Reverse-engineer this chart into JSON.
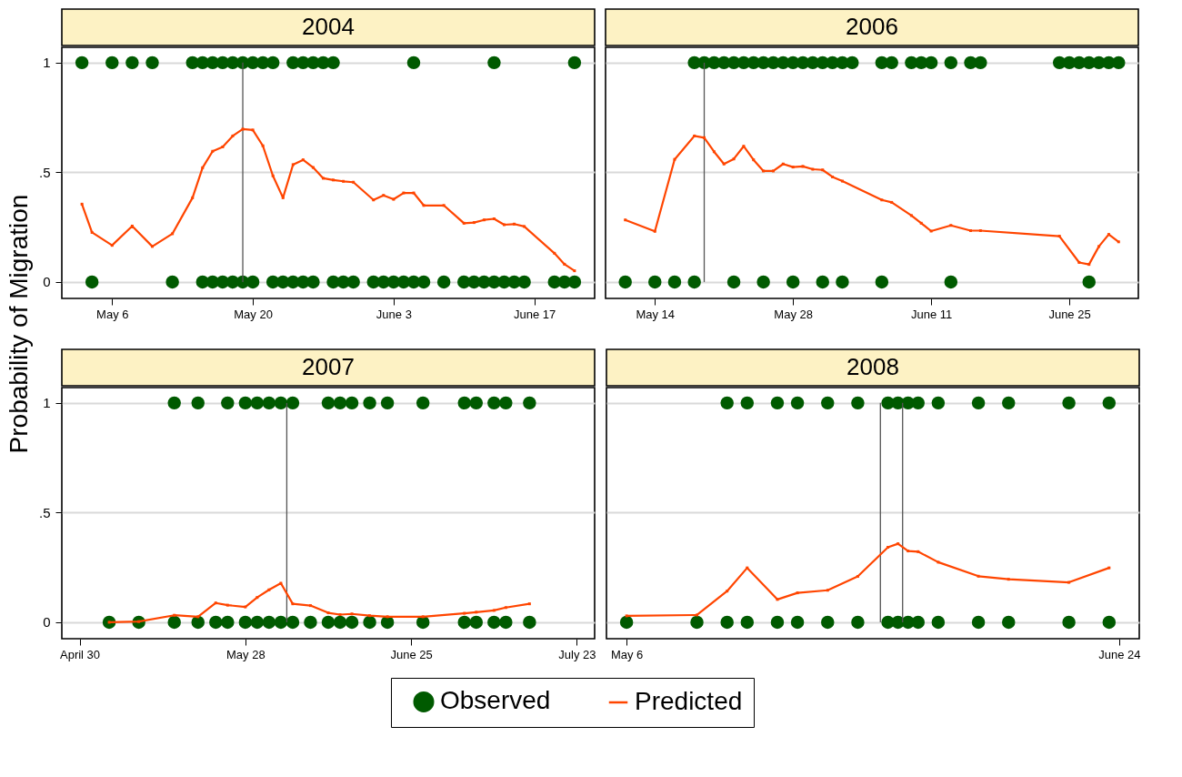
{
  "chart_data": [
    {
      "type": "line",
      "title": "2004",
      "ylabel": "Probability of Migration",
      "xlim": [
        "2004-05-01",
        "2004-06-23"
      ],
      "ylim": [
        -0.075,
        1.07
      ],
      "xticks": [
        {
          "value": "2004-05-06",
          "label": "May 6"
        },
        {
          "value": "2004-05-20",
          "label": "May 20"
        },
        {
          "value": "2004-06-03",
          "label": "June 3"
        },
        {
          "value": "2004-06-17",
          "label": "June 17"
        }
      ],
      "yticks": [
        0,
        {
          "value": 0.5,
          "label": ".5"
        },
        1
      ],
      "grid": "y",
      "legend": "bottom",
      "ref_lines": [
        {
          "axis": "x",
          "value": "2004-05-19",
          "color": "#555555"
        }
      ],
      "series": [
        {
          "name": "Observed",
          "type": "scatter",
          "marker": "circle",
          "color": "#005a00",
          "x": [
            "2004-05-03",
            "2004-05-06",
            "2004-05-08",
            "2004-05-10",
            "2004-05-14",
            "2004-05-15",
            "2004-05-16",
            "2004-05-17",
            "2004-05-18",
            "2004-05-19",
            "2004-05-20",
            "2004-05-21",
            "2004-05-22",
            "2004-05-24",
            "2004-05-25",
            "2004-05-26",
            "2004-05-27",
            "2004-05-28",
            "2004-06-05",
            "2004-06-13",
            "2004-06-21",
            "2004-05-04",
            "2004-05-12",
            "2004-05-15",
            "2004-05-16",
            "2004-05-17",
            "2004-05-18",
            "2004-05-19",
            "2004-05-20",
            "2004-05-22",
            "2004-05-23",
            "2004-05-24",
            "2004-05-25",
            "2004-05-26",
            "2004-05-28",
            "2004-05-29",
            "2004-05-30",
            "2004-06-01",
            "2004-06-02",
            "2004-06-03",
            "2004-06-04",
            "2004-06-05",
            "2004-06-06",
            "2004-06-08",
            "2004-06-10",
            "2004-06-11",
            "2004-06-12",
            "2004-06-13",
            "2004-06-14",
            "2004-06-15",
            "2004-06-16",
            "2004-06-19",
            "2004-06-20",
            "2004-06-21"
          ],
          "values": [
            1,
            1,
            1,
            1,
            1,
            1,
            1,
            1,
            1,
            1,
            1,
            1,
            1,
            1,
            1,
            1,
            1,
            1,
            1,
            1,
            1,
            0,
            0,
            0,
            0,
            0,
            0,
            0,
            0,
            0,
            0,
            0,
            0,
            0,
            0,
            0,
            0,
            0,
            0,
            0,
            0,
            0,
            0,
            0,
            0,
            0,
            0,
            0,
            0,
            0,
            0,
            0,
            0,
            0
          ]
        },
        {
          "name": "Predicted",
          "type": "line",
          "marker": "square",
          "color": "#ff4500",
          "x": [
            "2004-05-03",
            "2004-05-04",
            "2004-05-06",
            "2004-05-08",
            "2004-05-10",
            "2004-05-12",
            "2004-05-14",
            "2004-05-15",
            "2004-05-16",
            "2004-05-17",
            "2004-05-18",
            "2004-05-19",
            "2004-05-20",
            "2004-05-21",
            "2004-05-22",
            "2004-05-23",
            "2004-05-24",
            "2004-05-25",
            "2004-05-26",
            "2004-05-27",
            "2004-05-28",
            "2004-05-29",
            "2004-05-30",
            "2004-06-01",
            "2004-06-02",
            "2004-06-03",
            "2004-06-04",
            "2004-06-05",
            "2004-06-06",
            "2004-06-08",
            "2004-06-10",
            "2004-06-11",
            "2004-06-12",
            "2004-06-13",
            "2004-06-14",
            "2004-06-15",
            "2004-06-16",
            "2004-06-19",
            "2004-06-20",
            "2004-06-21"
          ],
          "values": [
            0.355,
            0.226,
            0.167,
            0.255,
            0.162,
            0.22,
            0.384,
            0.521,
            0.596,
            0.616,
            0.666,
            0.697,
            0.693,
            0.621,
            0.484,
            0.384,
            0.535,
            0.557,
            0.522,
            0.473,
            0.465,
            0.459,
            0.455,
            0.374,
            0.395,
            0.377,
            0.406,
            0.406,
            0.349,
            0.349,
            0.268,
            0.271,
            0.283,
            0.288,
            0.261,
            0.264,
            0.253,
            0.131,
            0.081,
            0.051
          ]
        }
      ]
    },
    {
      "type": "line",
      "title": "2006",
      "xlim": [
        "2006-05-09",
        "2006-07-02"
      ],
      "ylim": [
        -0.075,
        1.07
      ],
      "xticks": [
        {
          "value": "2006-05-14",
          "label": "May 14"
        },
        {
          "value": "2006-05-28",
          "label": "May 28"
        },
        {
          "value": "2006-06-11",
          "label": "June 11"
        },
        {
          "value": "2006-06-25",
          "label": "June 25"
        }
      ],
      "yticks": [
        0,
        0.5,
        1
      ],
      "grid": "y",
      "tick_labels": "x",
      "ref_lines": [
        {
          "axis": "x",
          "value": "2006-05-19",
          "color": "#555555"
        }
      ],
      "series": [
        {
          "type": "scatter",
          "marker": "circle",
          "color": "#005a00",
          "x": [
            "2006-05-18",
            "2006-05-19",
            "2006-05-20",
            "2006-05-21",
            "2006-05-22",
            "2006-05-23",
            "2006-05-24",
            "2006-05-25",
            "2006-05-26",
            "2006-05-27",
            "2006-05-28",
            "2006-05-29",
            "2006-05-30",
            "2006-05-31",
            "2006-06-01",
            "2006-06-02",
            "2006-06-03",
            "2006-06-06",
            "2006-06-07",
            "2006-06-09",
            "2006-06-10",
            "2006-06-11",
            "2006-06-13",
            "2006-06-15",
            "2006-06-16",
            "2006-06-24",
            "2006-06-25",
            "2006-06-26",
            "2006-06-27",
            "2006-06-28",
            "2006-06-29",
            "2006-06-30",
            "2006-05-11",
            "2006-05-14",
            "2006-05-16",
            "2006-05-18",
            "2006-05-22",
            "2006-05-25",
            "2006-05-28",
            "2006-05-31",
            "2006-06-02",
            "2006-06-06",
            "2006-06-13",
            "2006-06-27"
          ],
          "values": [
            1,
            1,
            1,
            1,
            1,
            1,
            1,
            1,
            1,
            1,
            1,
            1,
            1,
            1,
            1,
            1,
            1,
            1,
            1,
            1,
            1,
            1,
            1,
            1,
            1,
            1,
            1,
            1,
            1,
            1,
            1,
            1,
            0,
            0,
            0,
            0,
            0,
            0,
            0,
            0,
            0,
            0,
            0,
            0
          ]
        },
        {
          "type": "line",
          "marker": "square",
          "color": "#ff4500",
          "x": [
            "2006-05-11",
            "2006-05-14",
            "2006-05-16",
            "2006-05-18",
            "2006-05-19",
            "2006-05-20",
            "2006-05-21",
            "2006-05-22",
            "2006-05-23",
            "2006-05-24",
            "2006-05-25",
            "2006-05-26",
            "2006-05-27",
            "2006-05-28",
            "2006-05-29",
            "2006-05-30",
            "2006-05-31",
            "2006-06-01",
            "2006-06-02",
            "2006-06-06",
            "2006-06-07",
            "2006-06-09",
            "2006-06-10",
            "2006-06-11",
            "2006-06-13",
            "2006-06-15",
            "2006-06-16",
            "2006-06-24",
            "2006-06-26",
            "2006-06-27",
            "2006-06-28",
            "2006-06-29",
            "2006-06-30"
          ],
          "values": [
            0.283,
            0.231,
            0.559,
            0.666,
            0.658,
            0.594,
            0.538,
            0.561,
            0.619,
            0.557,
            0.506,
            0.506,
            0.538,
            0.524,
            0.527,
            0.514,
            0.511,
            0.479,
            0.46,
            0.374,
            0.363,
            0.303,
            0.268,
            0.232,
            0.258,
            0.234,
            0.234,
            0.209,
            0.089,
            0.08,
            0.162,
            0.217,
            0.183
          ]
        }
      ]
    },
    {
      "type": "line",
      "title": "2007",
      "xlim": [
        "2007-04-27",
        "2007-07-26"
      ],
      "ylim": [
        -0.075,
        1.07
      ],
      "xticks": [
        {
          "value": "2007-04-30",
          "label": "April 30"
        },
        {
          "value": "2007-05-28",
          "label": "May 28"
        },
        {
          "value": "2007-06-25",
          "label": "June 25"
        },
        {
          "value": "2007-07-23",
          "label": "July 23"
        }
      ],
      "yticks": [
        0,
        {
          "value": 0.5,
          "label": ".5"
        },
        1
      ],
      "grid": "y",
      "ref_lines": [
        {
          "axis": "x",
          "value": "2007-06-04",
          "color": "#555555"
        }
      ],
      "series": [
        {
          "type": "scatter",
          "marker": "circle",
          "color": "#005a00",
          "x": [
            "2007-05-16",
            "2007-05-20",
            "2007-05-25",
            "2007-05-28",
            "2007-05-30",
            "2007-06-01",
            "2007-06-03",
            "2007-06-05",
            "2007-06-11",
            "2007-06-13",
            "2007-06-15",
            "2007-06-18",
            "2007-06-21",
            "2007-06-27",
            "2007-07-04",
            "2007-07-06",
            "2007-07-09",
            "2007-07-11",
            "2007-07-15",
            "2007-05-05",
            "2007-05-10",
            "2007-05-16",
            "2007-05-20",
            "2007-05-23",
            "2007-05-25",
            "2007-05-28",
            "2007-05-30",
            "2007-06-01",
            "2007-06-03",
            "2007-06-05",
            "2007-06-08",
            "2007-06-11",
            "2007-06-13",
            "2007-06-15",
            "2007-06-18",
            "2007-06-21",
            "2007-06-27",
            "2007-07-04",
            "2007-07-06",
            "2007-07-09",
            "2007-07-11",
            "2007-07-15"
          ],
          "values": [
            1,
            1,
            1,
            1,
            1,
            1,
            1,
            1,
            1,
            1,
            1,
            1,
            1,
            1,
            1,
            1,
            1,
            1,
            1,
            0,
            0,
            0,
            0,
            0,
            0,
            0,
            0,
            0,
            0,
            0,
            0,
            0,
            0,
            0,
            0,
            0,
            0,
            0,
            0,
            0,
            0,
            0
          ]
        },
        {
          "type": "line",
          "marker": "square",
          "color": "#ff4500",
          "x": [
            "2007-05-05",
            "2007-05-10",
            "2007-05-16",
            "2007-05-20",
            "2007-05-23",
            "2007-05-25",
            "2007-05-28",
            "2007-05-30",
            "2007-06-01",
            "2007-06-03",
            "2007-06-05",
            "2007-06-08",
            "2007-06-11",
            "2007-06-13",
            "2007-06-15",
            "2007-06-18",
            "2007-06-21",
            "2007-06-27",
            "2007-07-04",
            "2007-07-06",
            "2007-07-09",
            "2007-07-11",
            "2007-07-15"
          ],
          "values": [
            0,
            0.003,
            0.032,
            0.025,
            0.088,
            0.078,
            0.07,
            0.113,
            0.148,
            0.178,
            0.084,
            0.076,
            0.043,
            0.035,
            0.038,
            0.03,
            0.025,
            0.025,
            0.041,
            0.046,
            0.054,
            0.067,
            0.084
          ]
        }
      ]
    },
    {
      "type": "line",
      "title": "2008",
      "xlim": [
        "2008-05-04",
        "2008-06-26"
      ],
      "ylim": [
        -0.075,
        1.07
      ],
      "xticks": [
        {
          "value": "2008-05-06",
          "label": "May 6"
        },
        {
          "value": "2008-06-24",
          "label": "June 24"
        }
      ],
      "yticks": [
        0,
        0.5,
        1
      ],
      "grid": "y",
      "tick_labels": "x",
      "ref_lines": [
        {
          "axis": "x",
          "value": "2008-05-31T06:00",
          "color": "#555555"
        },
        {
          "axis": "x",
          "value": "2008-06-02T11:00",
          "color": "#555555"
        }
      ],
      "series": [
        {
          "type": "scatter",
          "marker": "circle",
          "color": "#005a00",
          "x": [
            "2008-05-16",
            "2008-05-18",
            "2008-05-21",
            "2008-05-23",
            "2008-05-26",
            "2008-05-29",
            "2008-06-01",
            "2008-06-02",
            "2008-06-03",
            "2008-06-04",
            "2008-06-06",
            "2008-06-10",
            "2008-06-13",
            "2008-06-19",
            "2008-06-23",
            "2008-05-06",
            "2008-05-13",
            "2008-05-16",
            "2008-05-18",
            "2008-05-21",
            "2008-05-23",
            "2008-05-26",
            "2008-05-29",
            "2008-06-01",
            "2008-06-02",
            "2008-06-03",
            "2008-06-04",
            "2008-06-06",
            "2008-06-10",
            "2008-06-13",
            "2008-06-19",
            "2008-06-23"
          ],
          "values": [
            1,
            1,
            1,
            1,
            1,
            1,
            1,
            1,
            1,
            1,
            1,
            1,
            1,
            1,
            1,
            0,
            0,
            0,
            0,
            0,
            0,
            0,
            0,
            0,
            0,
            0,
            0,
            0,
            0,
            0,
            0,
            0
          ]
        },
        {
          "type": "line",
          "marker": "square",
          "color": "#ff4500",
          "x": [
            "2008-05-06",
            "2008-05-13",
            "2008-05-16",
            "2008-05-18",
            "2008-05-21",
            "2008-05-23",
            "2008-05-26",
            "2008-05-29",
            "2008-06-01",
            "2008-06-02",
            "2008-06-03",
            "2008-06-04",
            "2008-06-06",
            "2008-06-10",
            "2008-06-13",
            "2008-06-19",
            "2008-06-23"
          ],
          "values": [
            0.029,
            0.033,
            0.142,
            0.248,
            0.104,
            0.134,
            0.146,
            0.209,
            0.342,
            0.358,
            0.325,
            0.322,
            0.274,
            0.21,
            0.196,
            0.182,
            0.248
          ]
        }
      ]
    }
  ]
}
